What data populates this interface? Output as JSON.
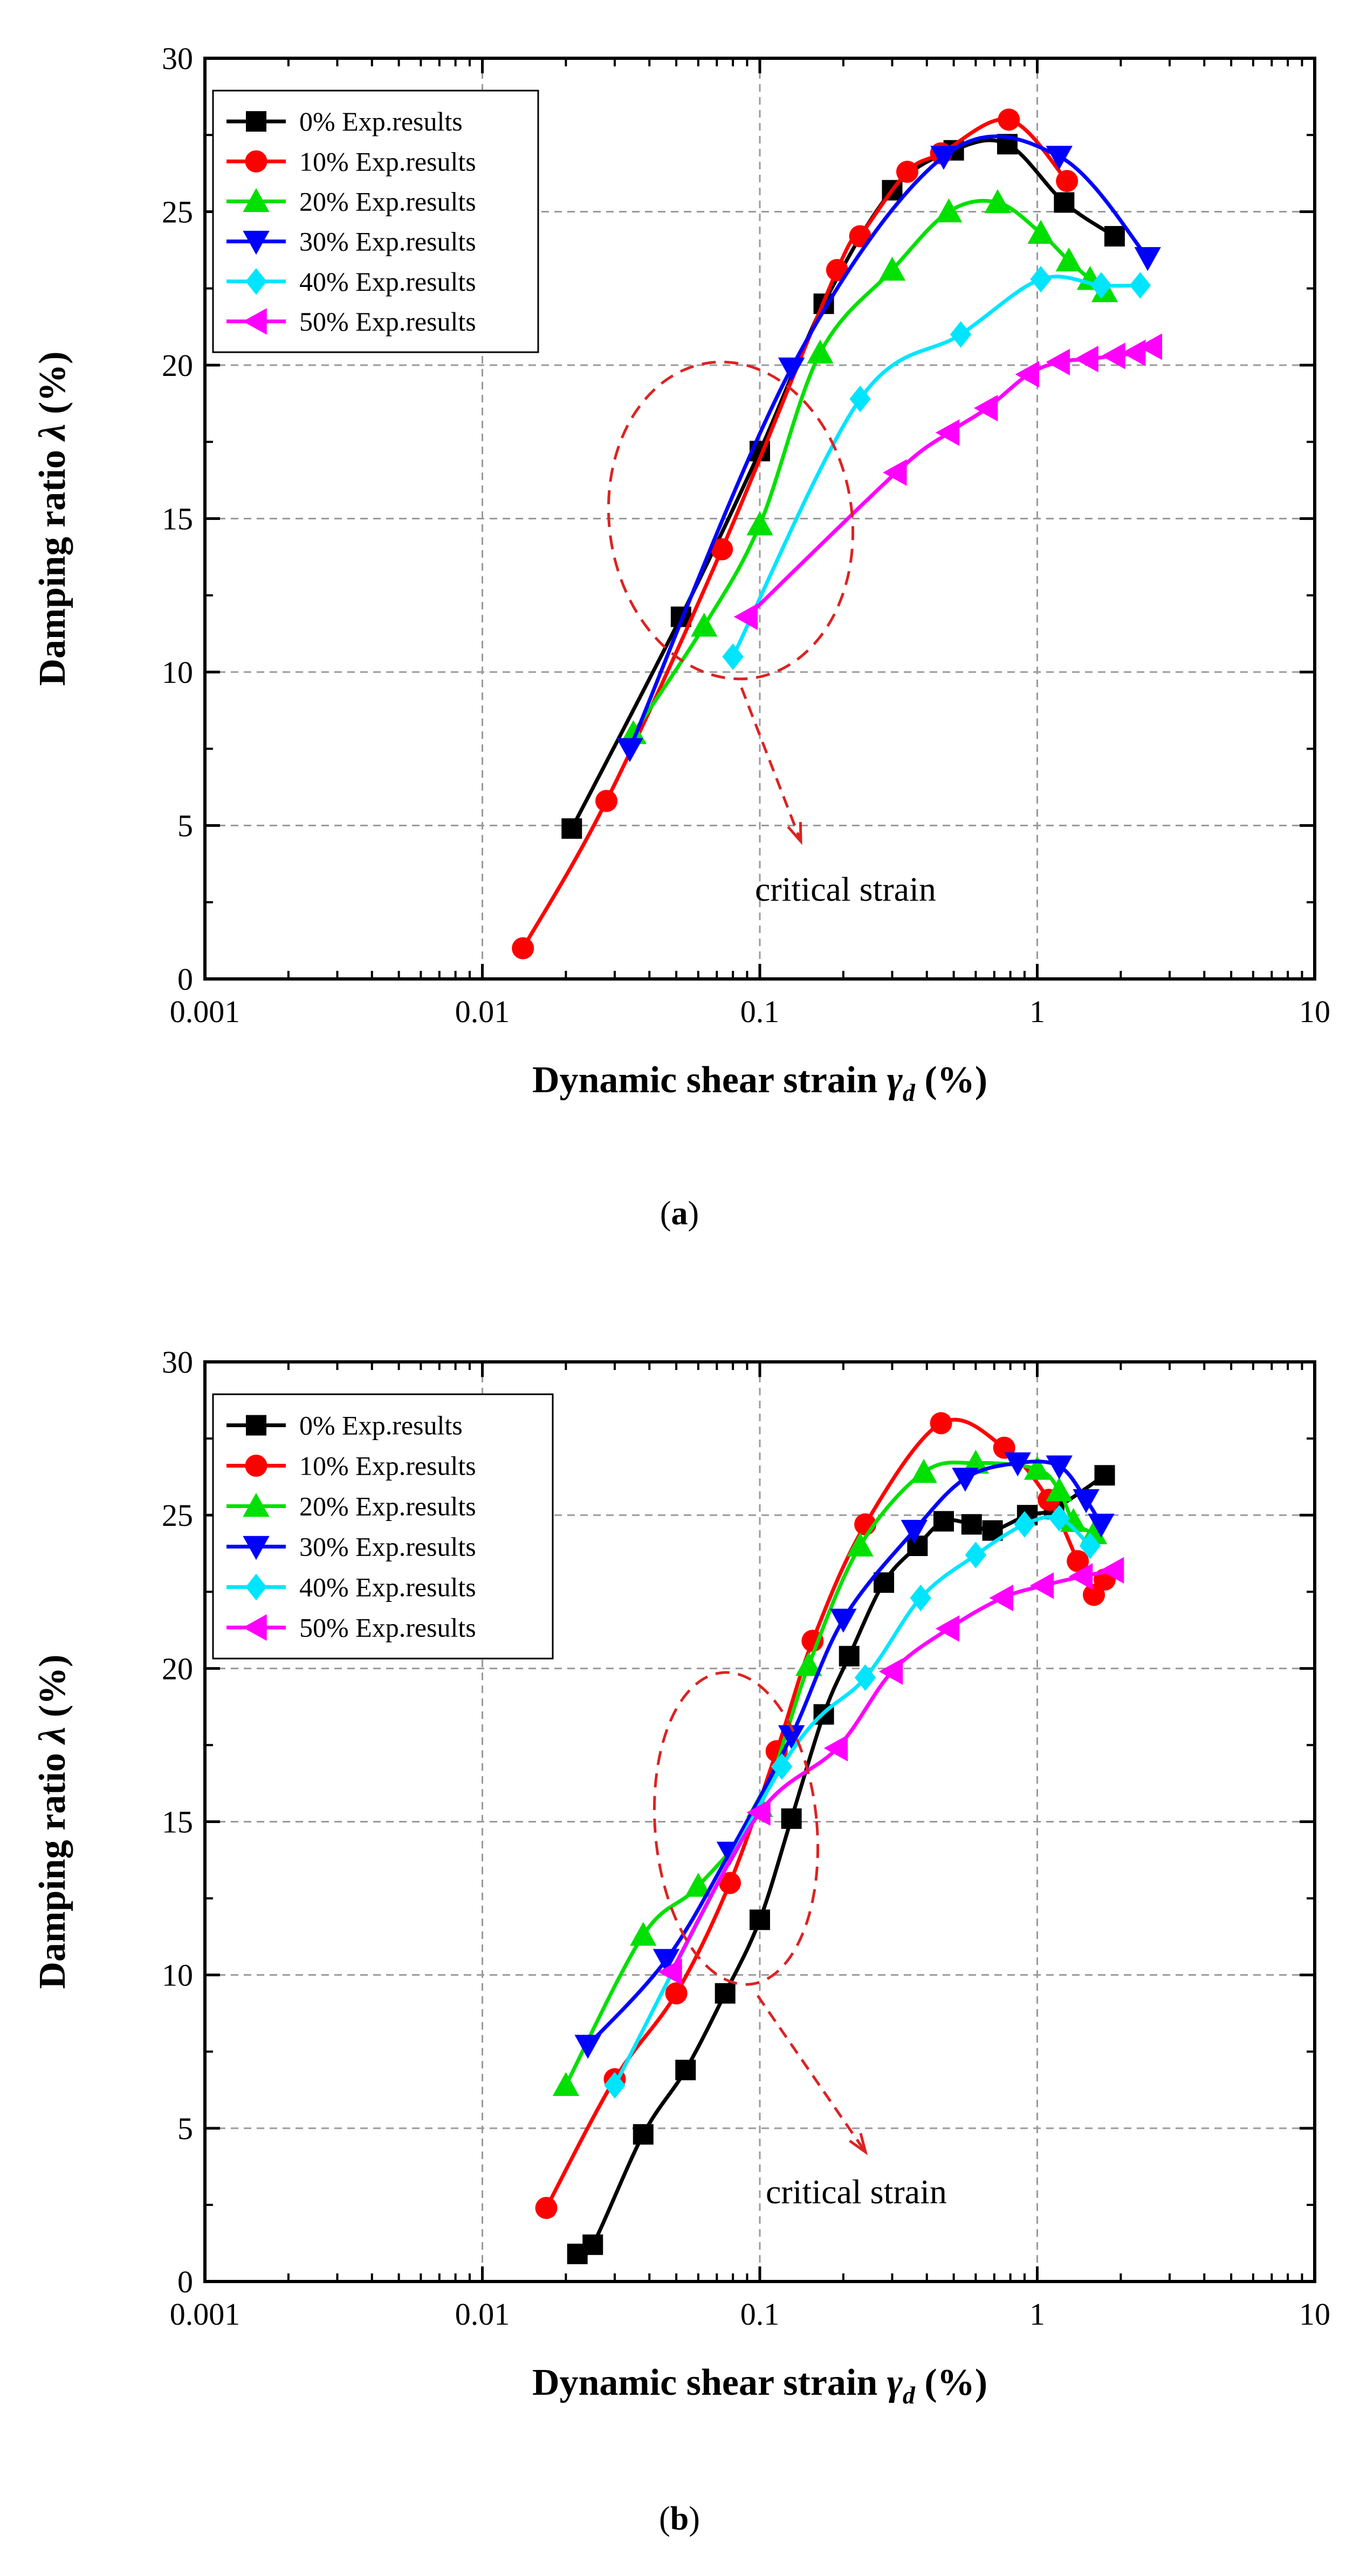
{
  "chart_data": [
    {
      "type": "line",
      "panel_label": "a",
      "xscale": "log",
      "xlim": [
        0.001,
        10
      ],
      "ylim": [
        0,
        30
      ],
      "xticks": [
        0.001,
        0.01,
        0.1,
        1,
        10
      ],
      "xtick_labels": [
        "0.001",
        "0.01",
        "0.1",
        "1",
        "10"
      ],
      "yticks": [
        0,
        5,
        10,
        15,
        20,
        25,
        30
      ],
      "ytick_labels": [
        "0",
        "5",
        "10",
        "15",
        "20",
        "25",
        "30"
      ],
      "xlabel_main": "Dynamic shear strain ",
      "xlabel_sym": "γ",
      "xlabel_sub": "d",
      "xlabel_tail": " (%)",
      "ylabel_main": "Damping ratio ",
      "ylabel_sym": "λ",
      "ylabel_tail": " (%)",
      "legend_position": "top-left",
      "grid": "dashed at x=0.1 and x=1, y gridlines",
      "annotation": "critical strain",
      "series": [
        {
          "name": "0% Exp.results",
          "color": "#000000",
          "marker": "square",
          "x": [
            0.021,
            0.052,
            0.1,
            0.17,
            0.3,
            0.5,
            0.78,
            1.25,
            1.9
          ],
          "y": [
            4.9,
            11.8,
            17.2,
            22.0,
            25.7,
            27.0,
            27.2,
            25.3,
            24.2
          ]
        },
        {
          "name": "10% Exp.results",
          "color": "#ff0000",
          "marker": "circle",
          "x": [
            0.014,
            0.028,
            0.073,
            0.19,
            0.23,
            0.34,
            0.45,
            0.79,
            1.28
          ],
          "y": [
            1.0,
            5.8,
            14.0,
            23.1,
            24.2,
            26.3,
            26.9,
            28.0,
            26.0
          ]
        },
        {
          "name": "20% Exp.results",
          "color": "#00e000",
          "marker": "triangle-up",
          "x": [
            0.035,
            0.063,
            0.1,
            0.165,
            0.3,
            0.48,
            0.72,
            1.03,
            1.3,
            1.55,
            1.75
          ],
          "y": [
            8.0,
            11.5,
            14.8,
            20.4,
            23.1,
            25.0,
            25.3,
            24.3,
            23.4,
            22.8,
            22.4
          ]
        },
        {
          "name": "30% Exp.results",
          "color": "#0000ff",
          "marker": "triangle-down",
          "x": [
            0.034,
            0.13,
            0.46,
            1.2,
            2.5
          ],
          "y": [
            7.5,
            19.9,
            26.8,
            26.8,
            23.5
          ]
        },
        {
          "name": "40% Exp.results",
          "color": "#00e5ff",
          "marker": "diamond",
          "x": [
            0.08,
            0.23,
            0.53,
            1.03,
            1.7,
            2.35
          ],
          "y": [
            10.5,
            18.9,
            21.0,
            22.8,
            22.6,
            22.6
          ]
        },
        {
          "name": "50% Exp.results",
          "color": "#ff00ff",
          "marker": "triangle-left",
          "x": [
            0.09,
            0.31,
            0.48,
            0.66,
            0.93,
            1.2,
            1.52,
            1.9,
            2.25,
            2.58
          ],
          "y": [
            11.8,
            16.5,
            17.8,
            18.6,
            19.7,
            20.1,
            20.2,
            20.3,
            20.4,
            20.6
          ]
        }
      ]
    },
    {
      "type": "line",
      "panel_label": "b",
      "xscale": "log",
      "xlim": [
        0.001,
        10
      ],
      "ylim": [
        0,
        30
      ],
      "xticks": [
        0.001,
        0.01,
        0.1,
        1,
        10
      ],
      "xtick_labels": [
        "0.001",
        "0.01",
        "0.1",
        "1",
        "10"
      ],
      "yticks": [
        0,
        5,
        10,
        15,
        20,
        25,
        30
      ],
      "ytick_labels": [
        "0",
        "5",
        "10",
        "15",
        "20",
        "25",
        "30"
      ],
      "xlabel_main": "Dynamic shear strain ",
      "xlabel_sym": "γ",
      "xlabel_sub": "d",
      "xlabel_tail": " (%)",
      "ylabel_main": "Damping  ratio ",
      "ylabel_sym": "λ",
      "ylabel_tail": " (%)",
      "legend_position": "top-left",
      "grid": "dashed at x=0.1 and x=1, y gridlines",
      "annotation": "critical strain",
      "series": [
        {
          "name": "0% Exp.results",
          "color": "#000000",
          "marker": "square",
          "x": [
            0.022,
            0.025,
            0.038,
            0.054,
            0.075,
            0.1,
            0.13,
            0.17,
            0.21,
            0.28,
            0.37,
            0.46,
            0.58,
            0.69,
            0.92,
            1.15,
            1.75
          ],
          "y": [
            0.9,
            1.2,
            4.8,
            6.9,
            9.4,
            11.8,
            15.1,
            18.5,
            20.4,
            22.8,
            24.0,
            24.8,
            24.7,
            24.5,
            25.0,
            25.2,
            26.3
          ]
        },
        {
          "name": "10% Exp.results",
          "color": "#ff0000",
          "marker": "circle",
          "x": [
            0.017,
            0.03,
            0.05,
            0.078,
            0.115,
            0.155,
            0.24,
            0.45,
            0.76,
            1.1,
            1.4,
            1.6,
            1.75
          ],
          "y": [
            2.4,
            6.6,
            9.4,
            13.0,
            17.3,
            20.9,
            24.7,
            28.0,
            27.2,
            25.5,
            23.5,
            22.4,
            22.9
          ]
        },
        {
          "name": "20% Exp.results",
          "color": "#00e000",
          "marker": "triangle-up",
          "x": [
            0.02,
            0.038,
            0.06,
            0.1,
            0.15,
            0.23,
            0.39,
            0.6,
            1.0,
            1.2,
            1.35,
            1.6
          ],
          "y": [
            6.4,
            11.3,
            12.9,
            15.5,
            20.1,
            24.0,
            26.4,
            26.7,
            26.5,
            25.8,
            24.8,
            24.4
          ]
        },
        {
          "name": "30% Exp.results",
          "color": "#0000ff",
          "marker": "triangle-down",
          "x": [
            0.024,
            0.046,
            0.078,
            0.13,
            0.2,
            0.36,
            0.55,
            0.85,
            1.2,
            1.5,
            1.7
          ],
          "y": [
            7.7,
            10.5,
            14.0,
            17.8,
            21.6,
            24.5,
            26.2,
            26.7,
            26.6,
            25.5,
            24.7
          ]
        },
        {
          "name": "40% Exp.results",
          "color": "#00e5ff",
          "marker": "diamond",
          "x": [
            0.03,
            0.12,
            0.24,
            0.38,
            0.6,
            0.9,
            1.2,
            1.55
          ],
          "y": [
            6.4,
            16.8,
            19.7,
            22.3,
            23.7,
            24.7,
            24.9,
            24.0
          ]
        },
        {
          "name": "50% Exp.results",
          "color": "#ff00ff",
          "marker": "triangle-left",
          "x": [
            0.048,
            0.1,
            0.19,
            0.3,
            0.48,
            0.75,
            1.05,
            1.45,
            1.88
          ],
          "y": [
            10.1,
            15.3,
            17.4,
            19.9,
            21.3,
            22.3,
            22.7,
            23.0,
            23.2
          ]
        }
      ]
    }
  ]
}
